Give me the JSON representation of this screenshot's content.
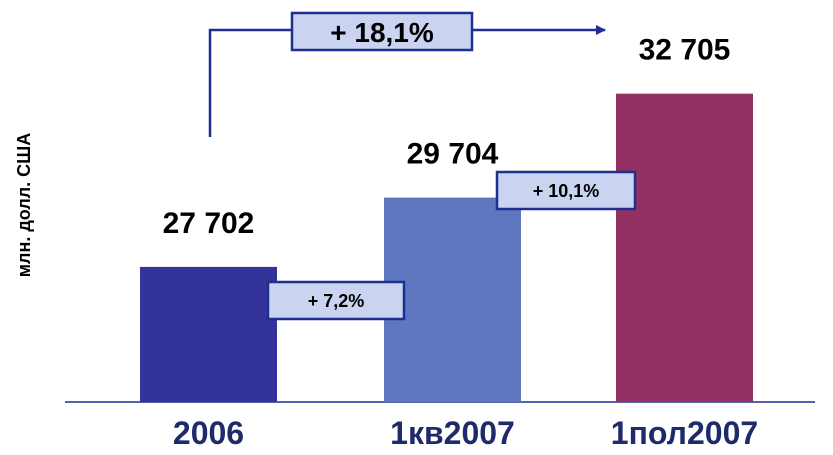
{
  "chart_data": {
    "type": "bar",
    "ylabel": "млн. долл. США",
    "xlabel": "",
    "categories": [
      "2006",
      "1кв2007",
      "1пол2007"
    ],
    "values": [
      27702,
      29704,
      32705
    ],
    "value_labels": [
      "27 702",
      "29 704",
      "32 705"
    ],
    "colors": [
      "#333399",
      "#5f77c0",
      "#943163"
    ],
    "ylim": [
      23800,
      33100
    ],
    "grid": false,
    "legend": "none",
    "annotations": {
      "overall_growth": "+ 18,1%",
      "growth_1": "+ 7,2%",
      "growth_2": "+ 10,1%"
    },
    "badge_fill": "#cad3ef",
    "badge_border": "#1f2f8f"
  }
}
